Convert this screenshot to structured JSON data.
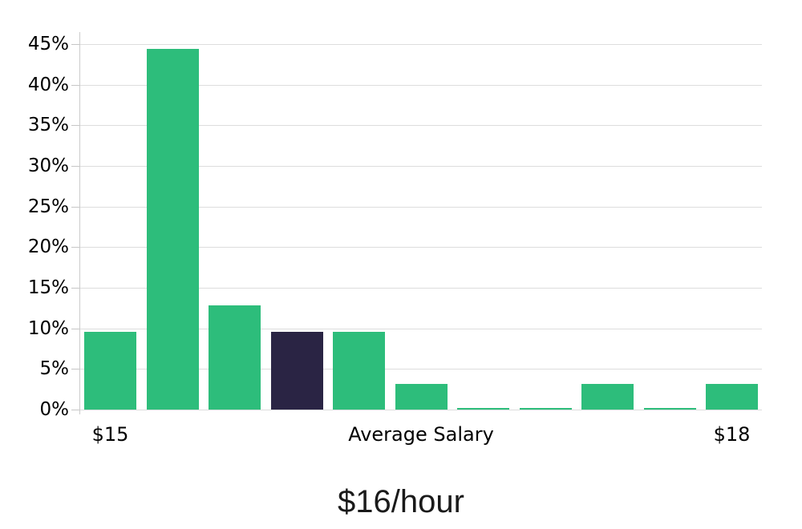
{
  "chart_data": {
    "type": "bar",
    "title": "$16/hour",
    "values": [
      9.6,
      44.4,
      12.8,
      9.6,
      9.6,
      3.2,
      0.15,
      0.15,
      3.2,
      0.15,
      3.2
    ],
    "highlighted_bar_index": 3,
    "y_ticks": [
      0,
      5,
      10,
      15,
      20,
      25,
      30,
      35,
      40,
      45
    ],
    "y_tick_suffix": "%",
    "ylim": [
      0,
      46.5
    ],
    "x_tick_labels": [
      {
        "text": "$15",
        "bar_index": 0
      },
      {
        "text": "Average Salary",
        "bar_index": 5
      },
      {
        "text": "$18",
        "bar_index": 10
      }
    ],
    "grid": true,
    "legend": false,
    "colors": {
      "bar": "#2dbd7b",
      "highlighted_bar": "#2a2444",
      "gridline": "#dddddd",
      "axis_line": "#cccccc",
      "label_text": "#000000",
      "title_text": "#1a1a1a"
    }
  }
}
